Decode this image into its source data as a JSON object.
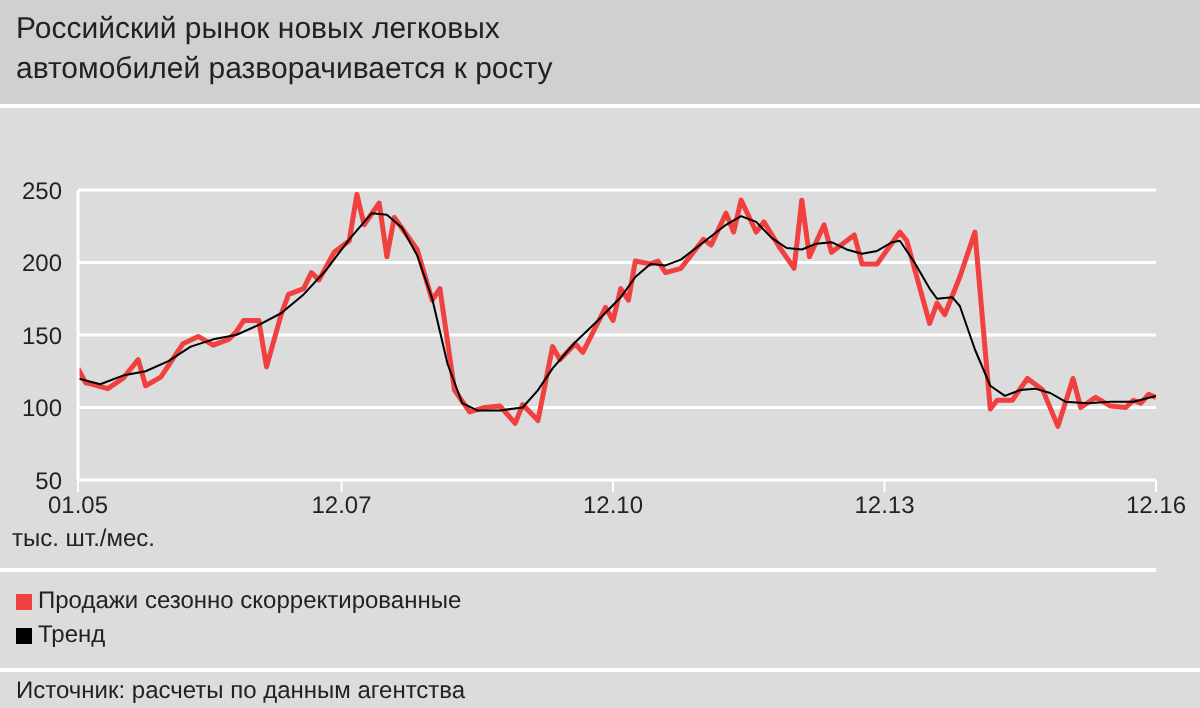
{
  "chart_data": {
    "type": "line",
    "title": "Российский рынок новых легковых автомобилей разворачивается к росту",
    "ylabel": "тыс. шт./мес.",
    "annotations": [
      "Источник: расчеты по данным агентства"
    ],
    "xlim": [
      "2005-01",
      "2016-12"
    ],
    "xticks": [
      {
        "value": "2005-01",
        "label": "01.05"
      },
      {
        "value": "2007-12",
        "label": "12.07"
      },
      {
        "value": "2010-12",
        "label": "12.10"
      },
      {
        "value": "2013-12",
        "label": "12.13"
      },
      {
        "value": "2016-12",
        "label": "12.16"
      }
    ],
    "ylim": [
      50,
      250
    ],
    "yticks": [
      50,
      100,
      150,
      200,
      250
    ],
    "grid": "y",
    "legend": "bottom left",
    "series": [
      {
        "name": "Продажи сезонно скорректированные",
        "color": "#f04040",
        "x": [
          "2005-01",
          "2005-02",
          "2005-03",
          "2005-05",
          "2005-07",
          "2005-09",
          "2005-10",
          "2005-12",
          "2006-03",
          "2006-05",
          "2006-07",
          "2006-09",
          "2006-10",
          "2006-11",
          "2007-01",
          "2007-02",
          "2007-04",
          "2007-05",
          "2007-07",
          "2007-08",
          "2007-09",
          "2007-11",
          "2008-01",
          "2008-02",
          "2008-03",
          "2008-05",
          "2008-06",
          "2008-07",
          "2008-10",
          "2008-12",
          "2009-01",
          "2009-03",
          "2009-05",
          "2009-07",
          "2009-09",
          "2009-11",
          "2009-12",
          "2010-02",
          "2010-04",
          "2010-05",
          "2010-07",
          "2010-08",
          "2010-11",
          "2010-12",
          "2011-01",
          "2011-02",
          "2011-03",
          "2011-05",
          "2011-06",
          "2011-07",
          "2011-09",
          "2011-12",
          "2012-01",
          "2012-03",
          "2012-04",
          "2012-05",
          "2012-07",
          "2012-08",
          "2012-10",
          "2012-12",
          "2013-01",
          "2013-02",
          "2013-04",
          "2013-05",
          "2013-08",
          "2013-09",
          "2013-11",
          "2014-02",
          "2014-03",
          "2014-06",
          "2014-07",
          "2014-08",
          "2014-10",
          "2014-12",
          "2015-02",
          "2015-03",
          "2015-05",
          "2015-07",
          "2015-09",
          "2015-11",
          "2016-01",
          "2016-02",
          "2016-04",
          "2016-06",
          "2016-08",
          "2016-09",
          "2016-10",
          "2016-11",
          "2016-12"
        ],
        "values": [
          127,
          117,
          116,
          113,
          120,
          133,
          115,
          121,
          144,
          149,
          143,
          147,
          152,
          160,
          160,
          128,
          164,
          178,
          182,
          193,
          188,
          207,
          215,
          247,
          226,
          241,
          204,
          231,
          209,
          174,
          182,
          112,
          97,
          100,
          101,
          89,
          102,
          91,
          142,
          133,
          144,
          138,
          169,
          160,
          182,
          174,
          201,
          199,
          201,
          193,
          196,
          216,
          212,
          234,
          221,
          243,
          221,
          228,
          211,
          196,
          243,
          204,
          226,
          207,
          219,
          199,
          199,
          221,
          215,
          158,
          172,
          164,
          190,
          221,
          99,
          105,
          105,
          120,
          112,
          87,
          120,
          100,
          107,
          101,
          100,
          105,
          103,
          109,
          107
        ]
      },
      {
        "name": "Тренд",
        "color": "#000000",
        "x": [
          "2005-01",
          "2005-04",
          "2005-07",
          "2005-10",
          "2006-01",
          "2006-04",
          "2006-07",
          "2006-10",
          "2007-01",
          "2007-04",
          "2007-07",
          "2007-10",
          "2008-01",
          "2008-04",
          "2008-06",
          "2008-08",
          "2008-10",
          "2008-12",
          "2009-02",
          "2009-04",
          "2009-06",
          "2009-09",
          "2009-12",
          "2010-02",
          "2010-04",
          "2010-07",
          "2010-10",
          "2011-01",
          "2011-03",
          "2011-05",
          "2011-07",
          "2011-09",
          "2011-12",
          "2012-03",
          "2012-05",
          "2012-07",
          "2012-09",
          "2012-11",
          "2013-01",
          "2013-03",
          "2013-05",
          "2013-07",
          "2013-09",
          "2013-11",
          "2014-01",
          "2014-02",
          "2014-04",
          "2014-06",
          "2014-07",
          "2014-09",
          "2014-10",
          "2014-12",
          "2015-02",
          "2015-04",
          "2015-06",
          "2015-08",
          "2015-10",
          "2015-12",
          "2016-03",
          "2016-06",
          "2016-09",
          "2016-12"
        ],
        "values": [
          120,
          116,
          122,
          125,
          132,
          142,
          147,
          150,
          157,
          165,
          178,
          195,
          216,
          234,
          233,
          224,
          205,
          175,
          130,
          103,
          98,
          98,
          100,
          112,
          127,
          145,
          160,
          176,
          190,
          199,
          198,
          202,
          214,
          226,
          232,
          228,
          217,
          210,
          209,
          213,
          214,
          209,
          206,
          208,
          214,
          215,
          200,
          182,
          175,
          176,
          170,
          140,
          115,
          108,
          112,
          113,
          110,
          104,
          103,
          104,
          104,
          108
        ]
      }
    ]
  }
}
